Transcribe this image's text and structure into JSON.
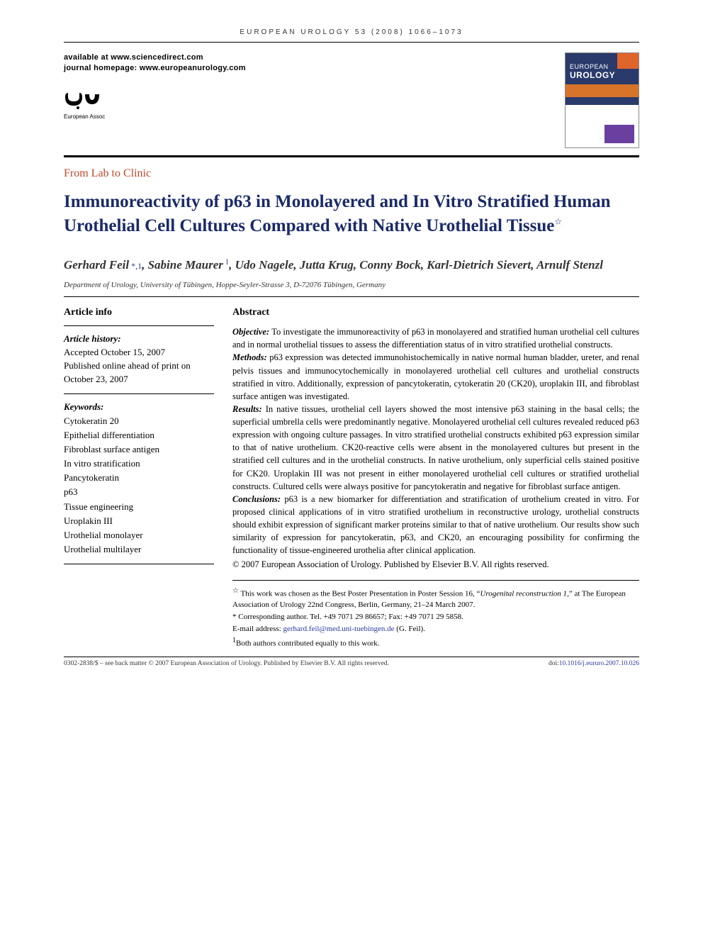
{
  "running_head": "EUROPEAN UROLOGY 53 (2008) 1066–1073",
  "header": {
    "available_at": "available at www.sciencedirect.com",
    "homepage": "journal homepage: www.europeanurology.com",
    "logo_caption": "European Association of Urology",
    "cover_small": "EUROPEAN",
    "cover_big": "UROLOGY"
  },
  "section_label": "From Lab to Clinic",
  "title": "Immunoreactivity of p63 in Monolayered and In Vitro Stratified Human Urothelial Cell Cultures Compared with Native Urothelial Tissue",
  "title_note_mark": "☆",
  "authors_html_parts": {
    "a1": "Gerhard Feil",
    "a1_marks": "*,1",
    "a2": "Sabine Maurer",
    "a2_marks": "1",
    "rest": ", Udo Nagele, Jutta Krug, Conny Bock, Karl-Dietrich Sievert, Arnulf Stenzl"
  },
  "affiliation": "Department of Urology, University of Tübingen, Hoppe-Seyler-Strasse 3, D-72076 Tübingen, Germany",
  "article_info": {
    "heading": "Article info",
    "history_label": "Article history:",
    "history_body": "Accepted October 15, 2007\nPublished online ahead of print on October 23, 2007",
    "keywords_label": "Keywords:",
    "keywords": [
      "Cytokeratin 20",
      "Epithelial differentiation",
      "Fibroblast surface antigen",
      "In vitro stratification",
      "Pancytokeratin",
      "p63",
      "Tissue engineering",
      "Uroplakin III",
      "Urothelial monolayer",
      "Urothelial multilayer"
    ]
  },
  "abstract": {
    "heading": "Abstract",
    "segments": [
      {
        "label": "Objective:",
        "text": "To investigate the immunoreactivity of p63 in monolayered and stratified human urothelial cell cultures and in normal urothelial tissues to assess the differentiation status of in vitro stratified urothelial constructs."
      },
      {
        "label": "Methods:",
        "text": "p63 expression was detected immunohistochemically in native normal human bladder, ureter, and renal pelvis tissues and immunocytochemically in monolayered urothelial cell cultures and urothelial constructs stratified in vitro. Additionally, expression of pancytokeratin, cytokeratin 20 (CK20), uroplakin III, and fibroblast surface antigen was investigated."
      },
      {
        "label": "Results:",
        "text": "In native tissues, urothelial cell layers showed the most intensive p63 staining in the basal cells; the superficial umbrella cells were predominantly negative. Monolayered urothelial cell cultures revealed reduced p63 expression with ongoing culture passages. In vitro stratified urothelial constructs exhibited p63 expression similar to that of native urothelium. CK20-reactive cells were absent in the monolayered cultures but present in the stratified cell cultures and in the urothelial constructs. In native urothelium, only superficial cells stained positive for CK20. Uroplakin III was not present in either monolayered urothelial cell cultures or stratified urothelial constructs. Cultured cells were always positive for pancytokeratin and negative for fibroblast surface antigen."
      },
      {
        "label": "Conclusions:",
        "text": "p63 is a new biomarker for differentiation and stratification of urothelium created in vitro. For proposed clinical applications of in vitro stratified urothelium in reconstructive urology, urothelial constructs should exhibit expression of significant marker proteins similar to that of native urothelium. Our results show such similarity of expression for pancytokeratin, p63, and CK20, an encouraging possibility for confirming the functionality of tissue-engineered urothelia after clinical application."
      }
    ],
    "copyright": "© 2007 European Association of Urology. Published by Elsevier B.V. All rights reserved."
  },
  "footnotes": {
    "star_mark": "☆",
    "star_prefix": " This work was chosen as the Best Poster Presentation in Poster Session 16, “",
    "star_italic": "Urogenital reconstruction 1",
    "star_suffix": ",” at The European Association of Urology 22nd Congress, Berlin, Germany, 21–24 March 2007.",
    "corr": "* Corresponding author. Tel. +49 7071 29 86657; Fax: +49 7071 29 5858.",
    "email_label": "E-mail address: ",
    "email": "gerhard.feil@med.uni-tuebingen.de",
    "email_suffix": " (G. Feil).",
    "equal_mark": "1",
    "equal": "Both authors contributed equally to this work."
  },
  "backmatter": {
    "left": "0302-2838/$ – see back matter © 2007 European Association of Urology. Published by Elsevier B.V. All rights reserved.",
    "doi_label": "doi:",
    "doi": "10.1016/j.eururo.2007.10.026"
  },
  "colors": {
    "section_label": "#c04a2a",
    "title": "#1a2a6a",
    "link": "#2a3aa0",
    "text": "#000000"
  }
}
